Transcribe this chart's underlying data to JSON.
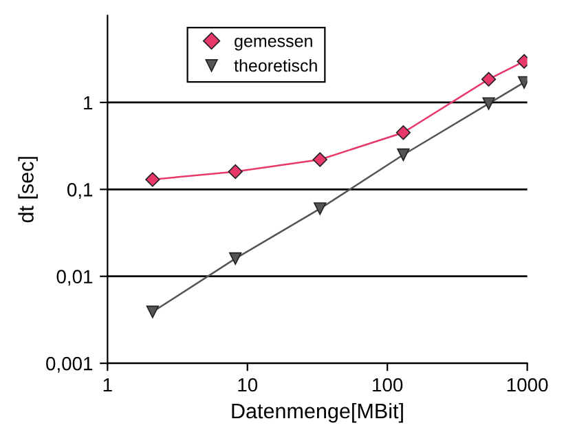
{
  "chart_data": {
    "type": "line",
    "xlabel": "Datenmenge[MBit]",
    "ylabel": "dt [sec]",
    "log": "xy",
    "xlim": [
      1,
      1000
    ],
    "xticks": [
      1,
      10,
      100,
      1000
    ],
    "ylim": [
      0.001,
      10
    ],
    "yticks": [
      {
        "value": 0.001,
        "label": "0,001"
      },
      {
        "value": 0.01,
        "label": "0,01"
      },
      {
        "value": 0.1,
        "label": "0,1"
      },
      {
        "value": 1,
        "label": "1"
      }
    ],
    "grid": "y",
    "legend": "top left",
    "x": [
      2.1,
      8.2,
      33,
      130,
      530,
      950
    ],
    "series": [
      {
        "name": "gemessen",
        "color": "#e8386a",
        "marker": "diamond",
        "values": [
          0.13,
          0.16,
          0.22,
          0.45,
          1.85,
          2.97
        ]
      },
      {
        "name": "theoretisch",
        "color": "#555555",
        "marker": "triangle",
        "values": [
          0.0039,
          0.016,
          0.06,
          0.25,
          0.97,
          1.7
        ]
      }
    ]
  }
}
